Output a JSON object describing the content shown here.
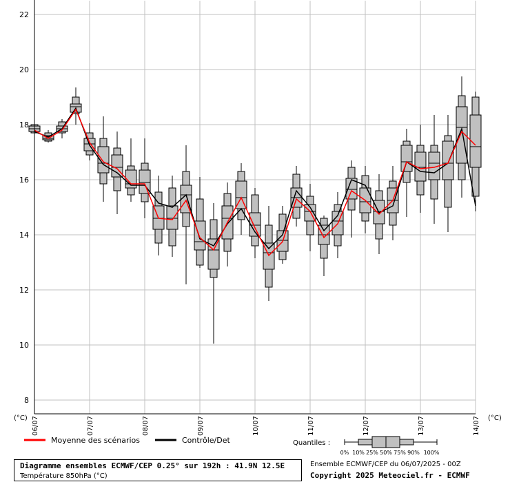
{
  "chart_data": {
    "type": "box",
    "ylim": [
      7.5,
      22.5
    ],
    "yticks": [
      8,
      10,
      12,
      14,
      16,
      18,
      20,
      22
    ],
    "y_unit_left": "(°C)",
    "y_unit_right": "(°C)",
    "grid": true,
    "x_step_hours": 6,
    "x_date_labels": [
      {
        "label": "06/07",
        "step": 0
      },
      {
        "label": "07/07",
        "step": 4
      },
      {
        "label": "08/07",
        "step": 8
      },
      {
        "label": "09/07",
        "step": 12
      },
      {
        "label": "10/07",
        "step": 16
      },
      {
        "label": "11/07",
        "step": 20
      },
      {
        "label": "12/07",
        "step": 24
      },
      {
        "label": "13/07",
        "step": 28
      },
      {
        "label": "14/07",
        "step": 32
      }
    ],
    "boxes": [
      {
        "step": 0,
        "q0": 17.6,
        "q10": 17.7,
        "q25": 17.75,
        "q50": 17.85,
        "q75": 17.95,
        "q90": 18.0,
        "q100": 18.1
      },
      {
        "step": 1,
        "q0": 17.35,
        "q10": 17.4,
        "q25": 17.45,
        "q50": 17.5,
        "q75": 17.6,
        "q90": 17.7,
        "q100": 17.8
      },
      {
        "step": 2,
        "q0": 17.5,
        "q10": 17.7,
        "q25": 17.75,
        "q50": 17.85,
        "q75": 17.95,
        "q90": 18.1,
        "q100": 18.2
      },
      {
        "step": 3,
        "q0": 18.0,
        "q10": 18.4,
        "q25": 18.45,
        "q50": 18.65,
        "q75": 18.75,
        "q90": 19.0,
        "q100": 19.35
      },
      {
        "step": 4,
        "q0": 16.7,
        "q10": 16.9,
        "q25": 17.05,
        "q50": 17.3,
        "q75": 17.5,
        "q90": 17.7,
        "q100": 18.05
      },
      {
        "step": 5,
        "q0": 15.2,
        "q10": 15.85,
        "q25": 16.25,
        "q50": 16.6,
        "q75": 17.2,
        "q90": 17.5,
        "q100": 18.3
      },
      {
        "step": 6,
        "q0": 14.75,
        "q10": 15.6,
        "q25": 16.1,
        "q50": 16.45,
        "q75": 16.9,
        "q90": 17.15,
        "q100": 17.75
      },
      {
        "step": 7,
        "q0": 15.2,
        "q10": 15.45,
        "q25": 15.7,
        "q50": 15.85,
        "q75": 16.35,
        "q90": 16.5,
        "q100": 17.5
      },
      {
        "step": 8,
        "q0": 14.6,
        "q10": 15.2,
        "q25": 15.5,
        "q50": 15.9,
        "q75": 16.35,
        "q90": 16.6,
        "q100": 17.5
      },
      {
        "step": 9,
        "q0": 13.25,
        "q10": 13.7,
        "q25": 14.2,
        "q50": 14.6,
        "q75": 15.05,
        "q90": 15.55,
        "q100": 16.15
      },
      {
        "step": 10,
        "q0": 13.2,
        "q10": 13.6,
        "q25": 14.2,
        "q50": 14.6,
        "q75": 15.05,
        "q90": 15.7,
        "q100": 16.15
      },
      {
        "step": 11,
        "q0": 12.2,
        "q10": 14.3,
        "q25": 14.8,
        "q50": 15.45,
        "q75": 15.8,
        "q90": 16.3,
        "q100": 17.25
      },
      {
        "step": 12,
        "q0": 12.8,
        "q10": 12.9,
        "q25": 13.45,
        "q50": 13.75,
        "q75": 14.5,
        "q90": 15.3,
        "q100": 16.1
      },
      {
        "step": 13,
        "q0": 10.05,
        "q10": 12.45,
        "q25": 12.75,
        "q50": 13.45,
        "q75": 13.85,
        "q90": 14.55,
        "q100": 15.15
      },
      {
        "step": 14,
        "q0": 12.85,
        "q10": 13.4,
        "q25": 13.85,
        "q50": 14.6,
        "q75": 15.05,
        "q90": 15.5,
        "q100": 15.9
      },
      {
        "step": 15,
        "q0": 14.0,
        "q10": 14.55,
        "q25": 14.95,
        "q50": 15.35,
        "q75": 15.95,
        "q90": 16.3,
        "q100": 16.6
      },
      {
        "step": 16,
        "q0": 13.15,
        "q10": 13.6,
        "q25": 13.95,
        "q50": 14.35,
        "q75": 14.8,
        "q90": 15.45,
        "q100": 15.7
      },
      {
        "step": 17,
        "q0": 11.6,
        "q10": 12.1,
        "q25": 12.75,
        "q50": 13.35,
        "q75": 13.7,
        "q90": 14.35,
        "q100": 15.05
      },
      {
        "step": 18,
        "q0": 12.95,
        "q10": 13.1,
        "q25": 13.4,
        "q50": 13.8,
        "q75": 14.15,
        "q90": 14.75,
        "q100": 15.05
      },
      {
        "step": 19,
        "q0": 14.3,
        "q10": 14.6,
        "q25": 15.0,
        "q50": 15.35,
        "q75": 15.7,
        "q90": 16.2,
        "q100": 16.5
      },
      {
        "step": 20,
        "q0": 13.4,
        "q10": 14.0,
        "q25": 14.5,
        "q50": 14.85,
        "q75": 15.1,
        "q90": 15.4,
        "q100": 15.85
      },
      {
        "step": 21,
        "q0": 12.5,
        "q10": 13.15,
        "q25": 13.65,
        "q50": 14.0,
        "q75": 14.35,
        "q90": 14.6,
        "q100": 14.7
      },
      {
        "step": 22,
        "q0": 13.15,
        "q10": 13.6,
        "q25": 14.0,
        "q50": 14.5,
        "q75": 14.85,
        "q90": 15.1,
        "q100": 15.55
      },
      {
        "step": 23,
        "q0": 13.9,
        "q10": 14.9,
        "q25": 15.3,
        "q50": 15.65,
        "q75": 16.05,
        "q90": 16.45,
        "q100": 16.7
      },
      {
        "step": 24,
        "q0": 14.05,
        "q10": 14.5,
        "q25": 14.8,
        "q50": 15.2,
        "q75": 15.7,
        "q90": 16.15,
        "q100": 16.5
      },
      {
        "step": 25,
        "q0": 13.3,
        "q10": 13.85,
        "q25": 14.4,
        "q50": 14.85,
        "q75": 15.25,
        "q90": 15.6,
        "q100": 16.2
      },
      {
        "step": 26,
        "q0": 13.8,
        "q10": 14.35,
        "q25": 14.8,
        "q50": 15.25,
        "q75": 15.7,
        "q90": 15.95,
        "q100": 16.5
      },
      {
        "step": 27,
        "q0": 14.65,
        "q10": 15.9,
        "q25": 16.3,
        "q50": 16.65,
        "q75": 17.25,
        "q90": 17.4,
        "q100": 17.85
      },
      {
        "step": 28,
        "q0": 14.8,
        "q10": 15.45,
        "q25": 15.95,
        "q50": 16.45,
        "q75": 17.0,
        "q90": 17.25,
        "q100": 18.0
      },
      {
        "step": 29,
        "q0": 14.4,
        "q10": 15.3,
        "q25": 16.0,
        "q50": 16.6,
        "q75": 17.0,
        "q90": 17.25,
        "q100": 18.35
      },
      {
        "step": 30,
        "q0": 14.1,
        "q10": 15.0,
        "q25": 16.0,
        "q50": 16.6,
        "q75": 17.4,
        "q90": 17.6,
        "q100": 18.35
      },
      {
        "step": 31,
        "q0": 15.35,
        "q10": 16.0,
        "q25": 16.6,
        "q50": 17.9,
        "q75": 18.65,
        "q90": 19.05,
        "q100": 19.75
      },
      {
        "step": 32,
        "q0": 14.85,
        "q10": 15.4,
        "q25": 16.45,
        "q50": 17.2,
        "q75": 18.35,
        "q90": 19.0,
        "q100": 19.2
      }
    ],
    "series": [
      {
        "name": "Moyenne des scénarios",
        "color": "#ff0000",
        "values": [
          17.8,
          17.5,
          17.8,
          18.55,
          17.35,
          16.65,
          16.4,
          15.85,
          15.85,
          14.6,
          14.55,
          15.25,
          13.9,
          13.45,
          14.45,
          15.35,
          14.25,
          13.25,
          13.75,
          15.3,
          14.85,
          13.9,
          14.4,
          15.6,
          15.25,
          14.75,
          15.25,
          16.65,
          16.4,
          16.45,
          16.6,
          17.75,
          17.25
        ]
      },
      {
        "name": "Contrôle/Det",
        "color": "#000000",
        "values": [
          17.75,
          17.55,
          17.85,
          18.6,
          17.25,
          16.55,
          16.25,
          15.8,
          15.8,
          15.15,
          15.0,
          15.45,
          13.85,
          13.6,
          14.4,
          14.95,
          14.1,
          13.5,
          14.0,
          15.6,
          15.0,
          14.15,
          14.7,
          16.0,
          15.8,
          14.8,
          15.05,
          16.65,
          16.3,
          16.25,
          16.6,
          17.85,
          15.05
        ]
      }
    ]
  },
  "legend": {
    "mean_label": "Moyenne des scénarios",
    "control_label": "Contrôle/Det",
    "quantiles_title": "Quantiles :",
    "quantile_labels": [
      "0%",
      "10%",
      "25%",
      "50%",
      "75%",
      "90%",
      "100%"
    ]
  },
  "caption": {
    "title": "Diagramme ensembles ECMWF/CEP 0.25° sur 192h : 41.9N 12.5E",
    "subtitle": "Température 850hPa (°C)"
  },
  "footer": {
    "ensemble_date": "Ensemble ECMWF/CEP du 06/07/2025 - 00Z",
    "copyright": "Copyright 2025 Meteociel.fr - ECMWF"
  },
  "colors": {
    "box_fill": "#c0c0c0",
    "grid": "#c0c0c0",
    "mean": "#ff0000",
    "control": "#000000"
  }
}
